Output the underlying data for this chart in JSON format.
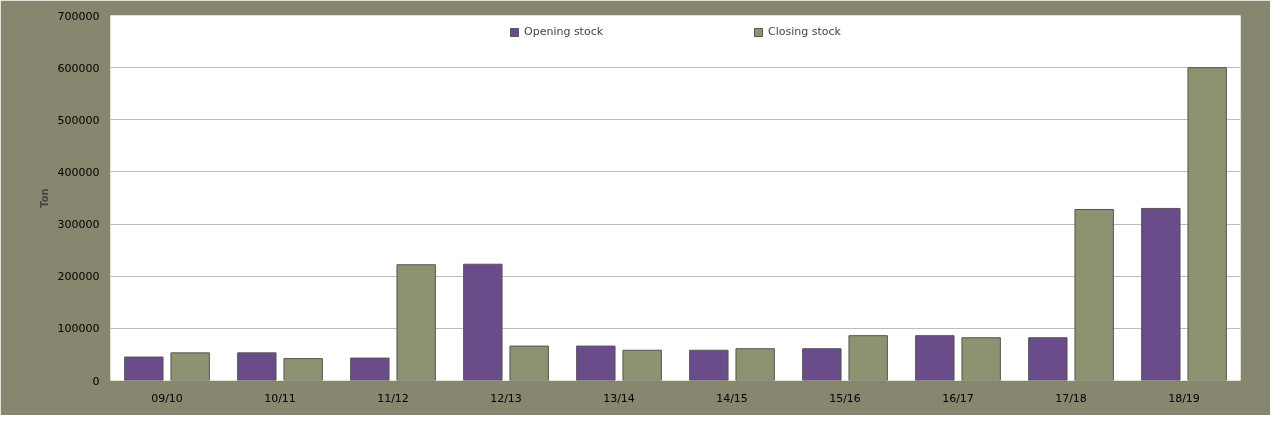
{
  "chart_data": {
    "type": "bar",
    "ylabel": "Ton",
    "categories": [
      "09/10",
      "10/11",
      "11/12",
      "12/13",
      "13/14",
      "14/15",
      "15/16",
      "16/17",
      "17/18",
      "18/19"
    ],
    "series": [
      {
        "name": "Opening stock",
        "color": "#6b4c8a",
        "values": [
          45000,
          53000,
          43000,
          223000,
          66000,
          58000,
          61000,
          86000,
          82000,
          330000
        ]
      },
      {
        "name": "Closing stock",
        "color": "#8e9270",
        "values": [
          53000,
          42000,
          222000,
          66000,
          58000,
          61000,
          86000,
          82000,
          328000,
          600000
        ]
      }
    ],
    "ylim": [
      0,
      700000
    ],
    "yticks": [
      0,
      100000,
      200000,
      300000,
      400000,
      500000,
      600000,
      700000
    ],
    "grid": "y",
    "legend": "top"
  }
}
